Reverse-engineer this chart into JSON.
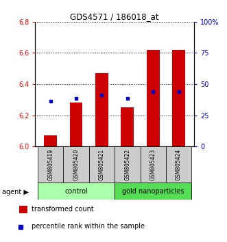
{
  "title": "GDS4571 / 186018_at",
  "samples": [
    "GSM805419",
    "GSM805420",
    "GSM805421",
    "GSM805422",
    "GSM805423",
    "GSM805424"
  ],
  "red_bar_values": [
    6.07,
    6.28,
    6.47,
    6.25,
    6.62,
    6.62
  ],
  "blue_dot_values": [
    6.29,
    6.31,
    6.33,
    6.31,
    6.35,
    6.35
  ],
  "bar_bottom": 6.0,
  "ylim": [
    6.0,
    6.8
  ],
  "yticks_left": [
    6.0,
    6.2,
    6.4,
    6.6,
    6.8
  ],
  "yticks_right": [
    0,
    25,
    50,
    75,
    100
  ],
  "ytick_right_labels": [
    "0",
    "25",
    "50",
    "75",
    "100%"
  ],
  "bar_color": "#cc0000",
  "dot_color": "#0000cc",
  "control_label": "control",
  "nano_label": "gold nanoparticles",
  "agent_label": "agent",
  "legend_red": "transformed count",
  "legend_blue": "percentile rank within the sample",
  "control_bg": "#aaffaa",
  "nano_bg": "#55dd55",
  "sample_bg": "#cccccc",
  "bar_width": 0.5,
  "right_ylim": [
    0,
    100
  ]
}
